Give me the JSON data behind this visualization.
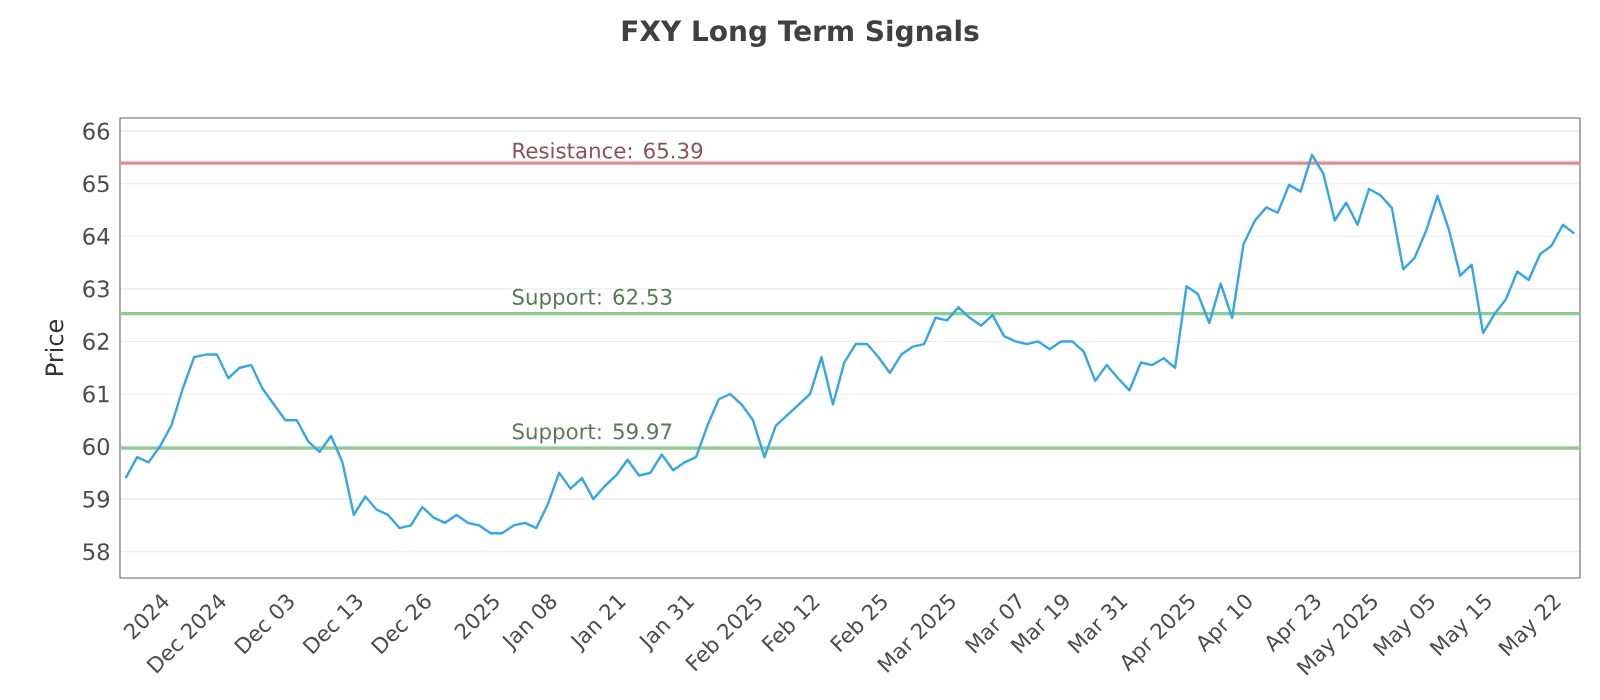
{
  "chart_data": {
    "type": "line",
    "title": "FXY Long Term Signals",
    "ylabel": "Price",
    "categories": [
      null,
      null,
      null,
      "2024",
      null,
      null,
      null,
      null,
      "Dec 2024",
      null,
      null,
      null,
      null,
      null,
      "Dec 03",
      null,
      null,
      null,
      null,
      null,
      "Dec 13",
      null,
      null,
      null,
      null,
      null,
      "Dec 26",
      null,
      null,
      null,
      null,
      null,
      "2025",
      null,
      null,
      null,
      null,
      "Jan 08",
      null,
      null,
      null,
      null,
      null,
      "Jan 21",
      null,
      null,
      null,
      null,
      null,
      "Jan 31",
      null,
      null,
      null,
      null,
      null,
      "Feb 2025",
      null,
      null,
      null,
      null,
      "Feb 12",
      null,
      null,
      null,
      null,
      null,
      "Feb 25",
      null,
      null,
      null,
      null,
      null,
      "Mar 2025",
      null,
      null,
      null,
      null,
      null,
      "Mar 07",
      null,
      null,
      null,
      "Mar 19",
      null,
      null,
      null,
      null,
      "Mar 31",
      null,
      null,
      null,
      null,
      null,
      "Apr 2025",
      null,
      null,
      null,
      null,
      "Apr 10",
      null,
      null,
      null,
      null,
      null,
      "Apr 23",
      null,
      null,
      null,
      null,
      "May 2025",
      null,
      null,
      null,
      null,
      "May 05",
      null,
      null,
      null,
      null,
      "May 15",
      null,
      null,
      null,
      null,
      null,
      "May 22",
      null,
      null
    ],
    "series": [
      {
        "color": "#35a7e8",
        "values": [
          59.4,
          59.8,
          59.7,
          60.0,
          60.4,
          61.1,
          61.7,
          61.75,
          61.75,
          61.3,
          61.5,
          61.55,
          61.1,
          60.8,
          60.5,
          60.5,
          60.1,
          59.9,
          60.2,
          59.7,
          58.7,
          59.05,
          58.8,
          58.7,
          58.45,
          58.5,
          58.85,
          58.65,
          58.55,
          58.7,
          58.55,
          58.5,
          58.35,
          58.35,
          58.5,
          58.55,
          58.45,
          58.9,
          59.5,
          59.2,
          59.4,
          59.0,
          59.25,
          59.45,
          59.75,
          59.45,
          59.5,
          59.85,
          59.55,
          59.7,
          59.8,
          60.4,
          60.9,
          61.0,
          60.8,
          60.5,
          59.8,
          60.4,
          60.6,
          60.8,
          61.0,
          61.7,
          60.8,
          61.6,
          61.95,
          61.95,
          61.7,
          61.4,
          61.75,
          61.9,
          61.95,
          62.45,
          62.4,
          62.65,
          62.45,
          62.3,
          62.5,
          62.1,
          62.0,
          61.95,
          62.0,
          61.85,
          62.0,
          62.0,
          61.8,
          61.25,
          61.55,
          61.3,
          61.07,
          61.6,
          61.55,
          61.68,
          61.5,
          63.05,
          62.9,
          62.35,
          63.1,
          62.45,
          63.85,
          64.3,
          64.55,
          64.45,
          64.98,
          64.85,
          65.55,
          65.19,
          64.3,
          64.64,
          64.22,
          64.9,
          64.78,
          64.54,
          63.37,
          63.59,
          64.1,
          64.77,
          64.13,
          63.25,
          63.46,
          62.16,
          62.52,
          62.8,
          63.33,
          63.17,
          63.66,
          63.82,
          64.22,
          64.05
        ]
      }
    ],
    "ylim": [
      57.5,
      66.25
    ],
    "yticks": [
      58,
      59,
      60,
      61,
      62,
      63,
      64,
      65,
      66
    ],
    "grid": "y",
    "ref_lines": [
      {
        "axis": "y",
        "value": 65.39,
        "label": "Resistance: 65.39",
        "color": "#e88a8a"
      },
      {
        "axis": "y",
        "value": 62.53,
        "label": "Support: 62.53",
        "color": "#8fcc8f"
      },
      {
        "axis": "y",
        "value": 59.97,
        "label": "Support: 59.97",
        "color": "#8fcc8f"
      }
    ]
  }
}
